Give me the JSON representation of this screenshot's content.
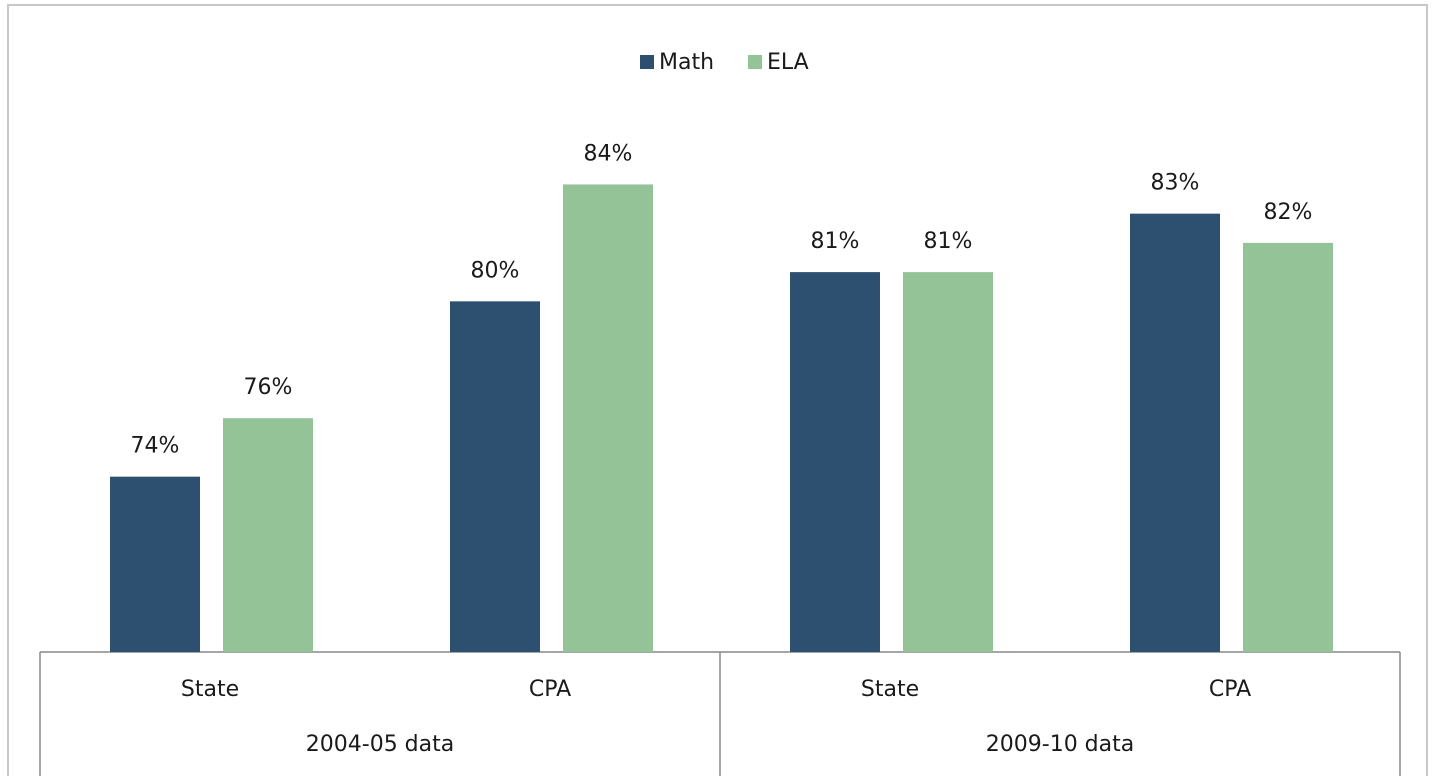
{
  "chart_data": {
    "type": "bar",
    "categories": [
      "State",
      "CPA",
      "State",
      "CPA"
    ],
    "groups": [
      "2004-05 data",
      "2009-10 data"
    ],
    "series": [
      {
        "name": "Math",
        "color": "#2e5070",
        "values": [
          74,
          80,
          81,
          83
        ],
        "value_labels": [
          "74%",
          "80%",
          "81%",
          "83%"
        ]
      },
      {
        "name": "ELA",
        "color": "#93c397",
        "values": [
          76,
          84,
          81,
          82
        ],
        "value_labels": [
          "76%",
          "84%",
          "81%",
          "82%"
        ]
      }
    ],
    "ylim": [
      68,
      86
    ],
    "legend": "top"
  }
}
